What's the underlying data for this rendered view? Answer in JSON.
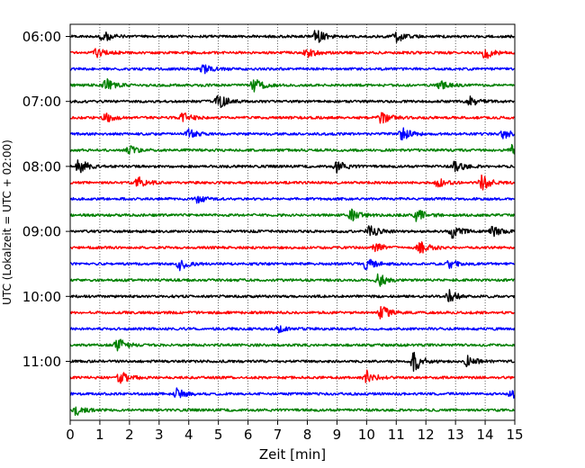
{
  "chart_data": {
    "type": "line",
    "title": "",
    "xlabel": "Zeit  [min]",
    "ylabel": "UTC (Lokalzeit = UTC + 02:00)",
    "xlim": [
      0,
      15
    ],
    "x_ticks": [
      0,
      1,
      2,
      3,
      4,
      5,
      6,
      7,
      8,
      9,
      10,
      11,
      12,
      13,
      14,
      15
    ],
    "y_ticks": [
      "06:00",
      "07:00",
      "08:00",
      "09:00",
      "10:00",
      "11:00"
    ],
    "grid": "vertical dotted",
    "colors": [
      "#000000",
      "#ff0000",
      "#0000ff",
      "#008000"
    ],
    "traces": [
      {
        "start": "06:00",
        "color": "#000000",
        "events": [
          {
            "t": 1.1,
            "a": 0.45
          },
          {
            "t": 8.3,
            "a": 0.6
          },
          {
            "t": 11.0,
            "a": 0.5
          }
        ]
      },
      {
        "start": "06:15",
        "color": "#ff0000",
        "events": [
          {
            "t": 0.9,
            "a": 0.35
          },
          {
            "t": 8.0,
            "a": 0.45
          },
          {
            "t": 14.0,
            "a": 0.5
          }
        ]
      },
      {
        "start": "06:30",
        "color": "#0000ff",
        "events": [
          {
            "t": 4.5,
            "a": 0.35
          }
        ]
      },
      {
        "start": "06:45",
        "color": "#008000",
        "events": [
          {
            "t": 1.2,
            "a": 0.5
          },
          {
            "t": 6.2,
            "a": 0.55
          },
          {
            "t": 12.5,
            "a": 0.3
          }
        ]
      },
      {
        "start": "07:00",
        "color": "#000000",
        "events": [
          {
            "t": 5.0,
            "a": 0.6
          },
          {
            "t": 13.5,
            "a": 0.35
          }
        ]
      },
      {
        "start": "07:15",
        "color": "#ff0000",
        "events": [
          {
            "t": 1.2,
            "a": 0.35
          },
          {
            "t": 3.8,
            "a": 0.4
          },
          {
            "t": 10.5,
            "a": 0.5
          }
        ]
      },
      {
        "start": "07:30",
        "color": "#0000ff",
        "events": [
          {
            "t": 4.0,
            "a": 0.35
          },
          {
            "t": 11.2,
            "a": 0.5
          },
          {
            "t": 14.6,
            "a": 0.4
          }
        ]
      },
      {
        "start": "07:45",
        "color": "#008000",
        "events": [
          {
            "t": 2.0,
            "a": 0.3
          },
          {
            "t": 14.9,
            "a": 0.35
          }
        ]
      },
      {
        "start": "08:00",
        "color": "#000000",
        "events": [
          {
            "t": 0.3,
            "a": 0.6
          },
          {
            "t": 9.0,
            "a": 0.45
          },
          {
            "t": 13.0,
            "a": 0.5
          }
        ]
      },
      {
        "start": "08:15",
        "color": "#ff0000",
        "events": [
          {
            "t": 2.3,
            "a": 0.45
          },
          {
            "t": 12.4,
            "a": 0.35
          },
          {
            "t": 13.9,
            "a": 0.6
          }
        ]
      },
      {
        "start": "08:30",
        "color": "#0000ff",
        "events": [
          {
            "t": 4.3,
            "a": 0.3
          }
        ]
      },
      {
        "start": "08:45",
        "color": "#008000",
        "events": [
          {
            "t": 9.5,
            "a": 0.45
          },
          {
            "t": 11.7,
            "a": 0.55
          }
        ]
      },
      {
        "start": "09:00",
        "color": "#000000",
        "events": [
          {
            "t": 10.1,
            "a": 0.5
          },
          {
            "t": 12.9,
            "a": 0.55
          },
          {
            "t": 14.2,
            "a": 0.45
          }
        ]
      },
      {
        "start": "09:15",
        "color": "#ff0000",
        "events": [
          {
            "t": 10.3,
            "a": 0.4
          },
          {
            "t": 11.8,
            "a": 0.55
          }
        ]
      },
      {
        "start": "09:30",
        "color": "#0000ff",
        "events": [
          {
            "t": 3.7,
            "a": 0.45
          },
          {
            "t": 10.0,
            "a": 0.45
          },
          {
            "t": 12.8,
            "a": 0.4
          }
        ]
      },
      {
        "start": "09:45",
        "color": "#008000",
        "events": [
          {
            "t": 10.4,
            "a": 0.55
          }
        ]
      },
      {
        "start": "10:00",
        "color": "#000000",
        "events": [
          {
            "t": 12.8,
            "a": 0.45
          }
        ]
      },
      {
        "start": "10:15",
        "color": "#ff0000",
        "events": [
          {
            "t": 10.5,
            "a": 0.55
          }
        ]
      },
      {
        "start": "10:30",
        "color": "#0000ff",
        "events": [
          {
            "t": 7.0,
            "a": 0.25
          }
        ]
      },
      {
        "start": "10:45",
        "color": "#008000",
        "events": [
          {
            "t": 1.6,
            "a": 0.55
          }
        ]
      },
      {
        "start": "11:00",
        "color": "#000000",
        "events": [
          {
            "t": 11.6,
            "a": 0.85
          },
          {
            "t": 13.4,
            "a": 0.45
          }
        ]
      },
      {
        "start": "11:15",
        "color": "#ff0000",
        "events": [
          {
            "t": 1.7,
            "a": 0.6
          },
          {
            "t": 10.0,
            "a": 0.55
          }
        ]
      },
      {
        "start": "11:30",
        "color": "#0000ff",
        "events": [
          {
            "t": 3.6,
            "a": 0.4
          },
          {
            "t": 14.9,
            "a": 0.4
          }
        ]
      },
      {
        "start": "11:45",
        "color": "#008000",
        "events": [
          {
            "t": 0.2,
            "a": 0.4
          }
        ]
      }
    ]
  }
}
